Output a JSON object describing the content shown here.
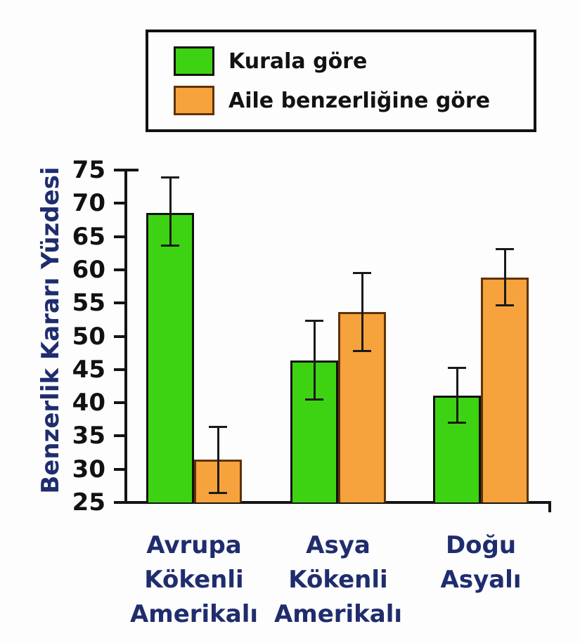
{
  "chart_data": {
    "type": "bar",
    "title": "",
    "xlabel": "",
    "ylabel": "Benzerlik Kararı Yüzdesi",
    "ylim": [
      25,
      75
    ],
    "yticks": [
      25,
      30,
      35,
      40,
      45,
      50,
      55,
      60,
      65,
      70,
      75
    ],
    "grid": false,
    "legend_position": "top",
    "categories": [
      "Avrupa\nKökenli\nAmerikalı",
      "Asya\nKökenli\nAmerikalı",
      "Doğu\nAsyalı"
    ],
    "series": [
      {
        "name": "Kurala göre",
        "color": "#3ed312",
        "border_color": "#111111",
        "values": [
          68.6,
          46.4,
          41.1
        ],
        "err_low": [
          63.6,
          40.4,
          36.9
        ],
        "err_high": [
          73.9,
          52.4,
          45.3
        ]
      },
      {
        "name": "Aile benzerliğine göre",
        "color": "#f6a33d",
        "border_color": "#5f3208",
        "values": [
          31.4,
          53.6,
          58.8
        ],
        "err_low": [
          26.4,
          47.7,
          54.6
        ],
        "err_high": [
          36.4,
          59.6,
          63.2
        ]
      }
    ]
  },
  "colors": {
    "axis": "#141414",
    "tick_text": "#111111",
    "category_text": "#1f2d6e",
    "ylabel_text": "#1f2d6e",
    "background": "#fdfdfd",
    "legend_border": "#111111"
  }
}
